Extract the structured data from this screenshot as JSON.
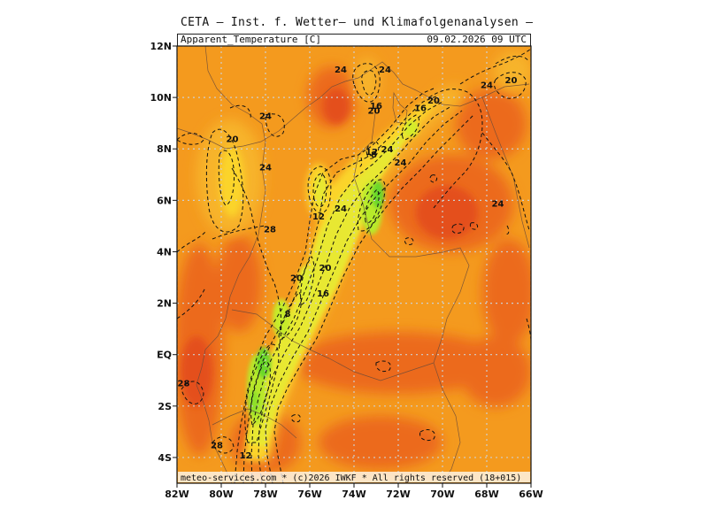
{
  "header": {
    "title": "CETA — Inst. f. Wetter— und Klimafolgenanalysen —",
    "field": "Apparent_Temperature [C]",
    "datetime": "09.02.2026  09 UTC"
  },
  "footer": {
    "copyright": "meteo-services.com * (c)2026 IWKF * All rights reserved (18+015)"
  },
  "axes": {
    "lat_labels": [
      "12N",
      "10N",
      "8N",
      "6N",
      "4N",
      "2N",
      "EQ",
      "2S",
      "4S"
    ],
    "lat_values": [
      12,
      10,
      8,
      6,
      4,
      2,
      0,
      -2,
      -4
    ],
    "lon_labels": [
      "82W",
      "80W",
      "78W",
      "76W",
      "74W",
      "72W",
      "70W",
      "68W",
      "66W"
    ],
    "lon_values": [
      -82,
      -80,
      -78,
      -76,
      -74,
      -72,
      -70,
      -68,
      -66
    ]
  },
  "contour_labels": [
    {
      "text": "24",
      "lon": -74.6,
      "lat": 11.1
    },
    {
      "text": "24",
      "lon": -72.6,
      "lat": 11.1
    },
    {
      "text": "24",
      "lon": -68.0,
      "lat": 10.5
    },
    {
      "text": "20",
      "lon": -66.9,
      "lat": 10.7
    },
    {
      "text": "20",
      "lon": -70.4,
      "lat": 9.9
    },
    {
      "text": "16",
      "lon": -71.0,
      "lat": 9.6
    },
    {
      "text": "16",
      "lon": -73.0,
      "lat": 9.7
    },
    {
      "text": "20",
      "lon": -73.1,
      "lat": 9.5
    },
    {
      "text": "24",
      "lon": -78.0,
      "lat": 9.3
    },
    {
      "text": "20",
      "lon": -79.5,
      "lat": 8.4
    },
    {
      "text": "12",
      "lon": -73.2,
      "lat": 7.9
    },
    {
      "text": "24",
      "lon": -72.5,
      "lat": 8.0
    },
    {
      "text": "8",
      "lon": -73.1,
      "lat": 7.8
    },
    {
      "text": "24",
      "lon": -71.9,
      "lat": 7.5
    },
    {
      "text": "24",
      "lon": -78.0,
      "lat": 7.3
    },
    {
      "text": "24",
      "lon": -67.5,
      "lat": 5.9
    },
    {
      "text": "24",
      "lon": -74.6,
      "lat": 5.7
    },
    {
      "text": "12",
      "lon": -75.6,
      "lat": 5.4
    },
    {
      "text": "28",
      "lon": -77.8,
      "lat": 4.9
    },
    {
      "text": "20",
      "lon": -75.3,
      "lat": 3.4
    },
    {
      "text": "20",
      "lon": -76.6,
      "lat": 3.0
    },
    {
      "text": "16",
      "lon": -75.4,
      "lat": 2.4
    },
    {
      "text": "8",
      "lon": -77.0,
      "lat": 1.6
    },
    {
      "text": "28",
      "lon": -81.7,
      "lat": -1.1
    },
    {
      "text": "28",
      "lon": -80.2,
      "lat": -3.5
    },
    {
      "text": "12",
      "lon": -78.9,
      "lat": -3.9
    }
  ],
  "colors": {
    "background": "#ffffff",
    "orange": "#f49a1e",
    "dark_orange": "#ef6f1a",
    "red_orange": "#e8521a",
    "light_orange": "#f7b42a",
    "yellow": "#fbd42a",
    "light_yellow": "#f2e830",
    "lime": "#d6ee2a",
    "green": "#9de82c",
    "bright_green": "#6ad82a",
    "grid": "#c8c8c8",
    "contour": "#111111",
    "coast": "#6a4a3a"
  }
}
